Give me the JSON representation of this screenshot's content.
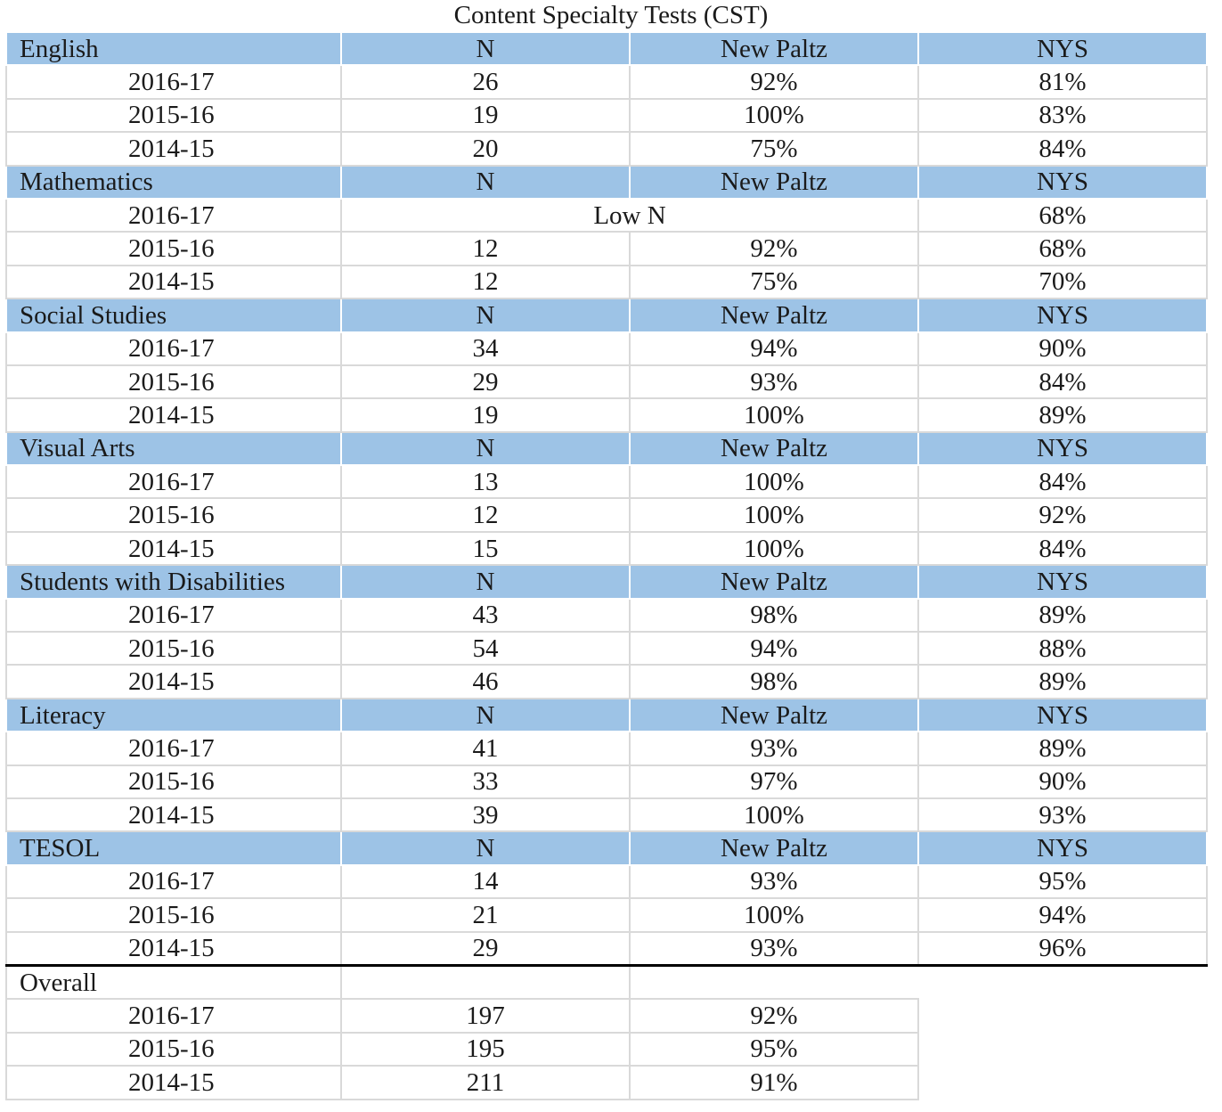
{
  "title": "Content Specialty Tests (CST)",
  "columns": {
    "n": "N",
    "school": "New Paltz",
    "state": "NYS"
  },
  "sections": [
    {
      "name": "English",
      "rows": [
        {
          "year": "2016-17",
          "n": "26",
          "np": "92%",
          "nys": "81%"
        },
        {
          "year": "2015-16",
          "n": "19",
          "np": "100%",
          "nys": "83%"
        },
        {
          "year": "2014-15",
          "n": "20",
          "np": "75%",
          "nys": "84%"
        }
      ]
    },
    {
      "name": "Mathematics",
      "rows": [
        {
          "year": "2016-17",
          "merged": "Low N",
          "nys": "68%"
        },
        {
          "year": "2015-16",
          "n": "12",
          "np": "92%",
          "nys": "68%"
        },
        {
          "year": "2014-15",
          "n": "12",
          "np": "75%",
          "nys": "70%"
        }
      ]
    },
    {
      "name": "Social Studies",
      "rows": [
        {
          "year": "2016-17",
          "n": "34",
          "np": "94%",
          "nys": "90%"
        },
        {
          "year": "2015-16",
          "n": "29",
          "np": "93%",
          "nys": "84%"
        },
        {
          "year": "2014-15",
          "n": "19",
          "np": "100%",
          "nys": "89%"
        }
      ]
    },
    {
      "name": "Visual Arts",
      "rows": [
        {
          "year": "2016-17",
          "n": "13",
          "np": "100%",
          "nys": "84%"
        },
        {
          "year": "2015-16",
          "n": "12",
          "np": "100%",
          "nys": "92%"
        },
        {
          "year": "2014-15",
          "n": "15",
          "np": "100%",
          "nys": "84%"
        }
      ]
    },
    {
      "name": "Students with Disabilities",
      "rows": [
        {
          "year": "2016-17",
          "n": "43",
          "np": "98%",
          "nys": "89%"
        },
        {
          "year": "2015-16",
          "n": "54",
          "np": "94%",
          "nys": "88%"
        },
        {
          "year": "2014-15",
          "n": "46",
          "np": "98%",
          "nys": "89%"
        }
      ]
    },
    {
      "name": "Literacy",
      "rows": [
        {
          "year": "2016-17",
          "n": "41",
          "np": "93%",
          "nys": "89%"
        },
        {
          "year": "2015-16",
          "n": "33",
          "np": "97%",
          "nys": "90%"
        },
        {
          "year": "2014-15",
          "n": "39",
          "np": "100%",
          "nys": "93%"
        }
      ]
    },
    {
      "name": "TESOL",
      "rows": [
        {
          "year": "2016-17",
          "n": "14",
          "np": "93%",
          "nys": "95%"
        },
        {
          "year": "2015-16",
          "n": "21",
          "np": "100%",
          "nys": "94%"
        },
        {
          "year": "2014-15",
          "n": "29",
          "np": "93%",
          "nys": "96%"
        }
      ]
    }
  ],
  "overall": {
    "label": "Overall",
    "rows": [
      {
        "year": "2016-17",
        "n": "197",
        "np": "92%"
      },
      {
        "year": "2015-16",
        "n": "195",
        "np": "95%"
      },
      {
        "year": "2014-15",
        "n": "211",
        "np": "91%"
      }
    ]
  },
  "colors": {
    "header_fill": "#9dc3e6",
    "grid": "#d9d9d9",
    "rule": "#000000"
  }
}
